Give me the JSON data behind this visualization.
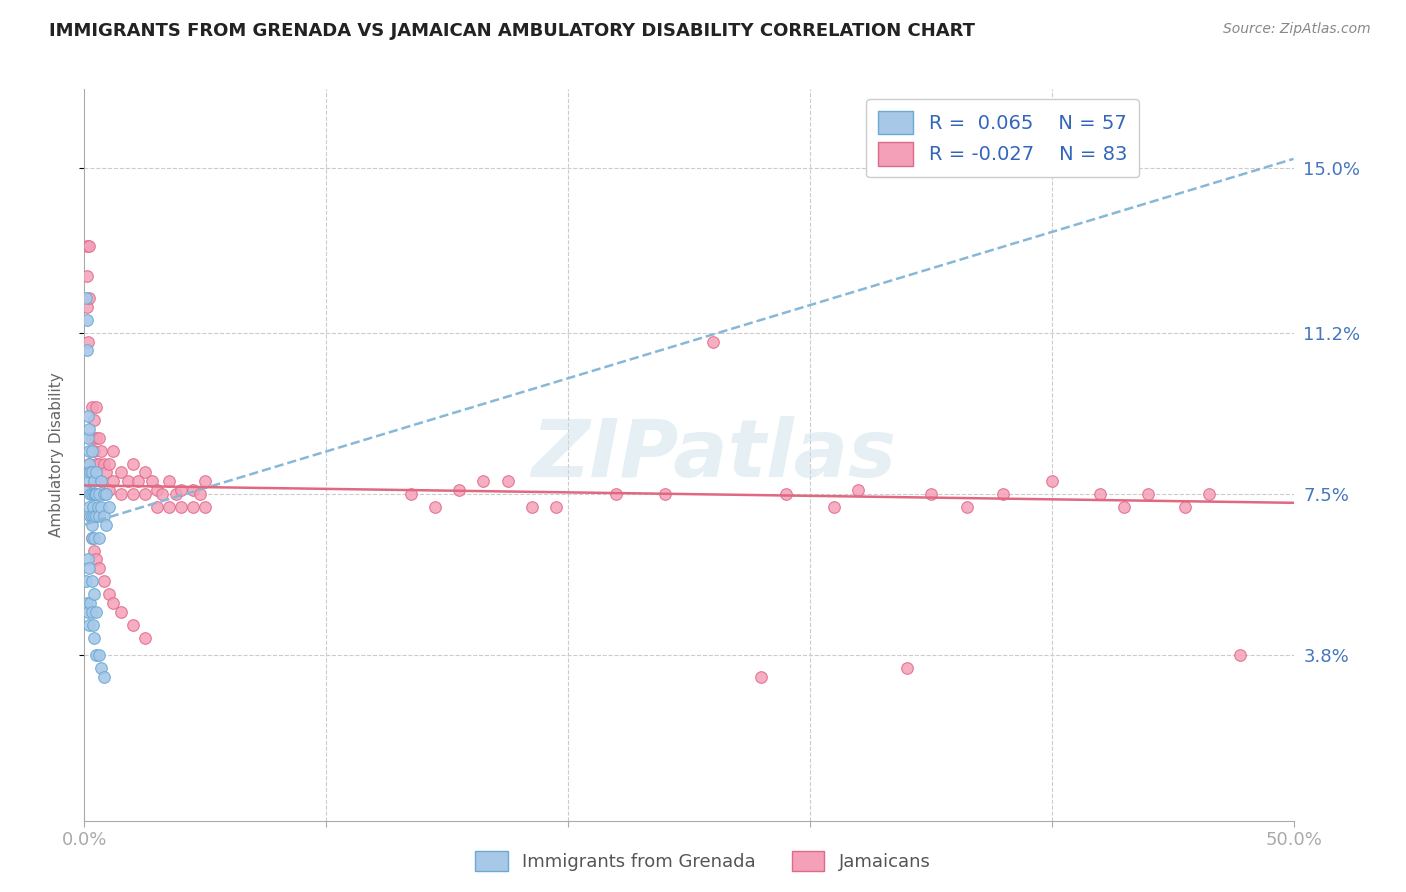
{
  "title": "IMMIGRANTS FROM GRENADA VS JAMAICAN AMBULATORY DISABILITY CORRELATION CHART",
  "source": "Source: ZipAtlas.com",
  "ylabel": "Ambulatory Disability",
  "xlim": [
    0.0,
    0.5
  ],
  "ylim": [
    0.0,
    0.168
  ],
  "ytick_positions": [
    0.038,
    0.075,
    0.112,
    0.15
  ],
  "ytick_labels": [
    "3.8%",
    "7.5%",
    "11.2%",
    "15.0%"
  ],
  "grid_color": "#cccccc",
  "background_color": "#ffffff",
  "watermark": "ZIPatlas",
  "legend_r1": "R =  0.065",
  "legend_n1": "N = 57",
  "legend_r2": "R = -0.027",
  "legend_n2": "N = 83",
  "blue_color": "#a8c8e8",
  "blue_edge": "#6aaad4",
  "pink_color": "#f4a0b8",
  "pink_edge": "#e06888",
  "trend_blue_color": "#88b8d8",
  "trend_pink_color": "#e06880",
  "blue_trend_x": [
    0.0,
    0.5
  ],
  "blue_trend_y": [
    0.068,
    0.152
  ],
  "pink_trend_x": [
    0.0,
    0.5
  ],
  "pink_trend_y": [
    0.077,
    0.073
  ],
  "blue_x": [
    0.0005,
    0.0008,
    0.001,
    0.0012,
    0.0015,
    0.0015,
    0.0018,
    0.002,
    0.002,
    0.002,
    0.002,
    0.0022,
    0.0025,
    0.0025,
    0.003,
    0.003,
    0.003,
    0.003,
    0.003,
    0.0032,
    0.0035,
    0.004,
    0.004,
    0.004,
    0.004,
    0.0045,
    0.005,
    0.005,
    0.005,
    0.0055,
    0.006,
    0.006,
    0.006,
    0.007,
    0.007,
    0.008,
    0.008,
    0.009,
    0.009,
    0.01,
    0.0005,
    0.001,
    0.0015,
    0.002,
    0.0025,
    0.003,
    0.0035,
    0.004,
    0.005,
    0.006,
    0.007,
    0.008,
    0.0015,
    0.002,
    0.003,
    0.004,
    0.005
  ],
  "blue_y": [
    0.076,
    0.12,
    0.115,
    0.108,
    0.093,
    0.088,
    0.085,
    0.09,
    0.082,
    0.078,
    0.072,
    0.07,
    0.08,
    0.075,
    0.085,
    0.08,
    0.075,
    0.07,
    0.068,
    0.065,
    0.072,
    0.078,
    0.075,
    0.07,
    0.065,
    0.075,
    0.08,
    0.075,
    0.07,
    0.072,
    0.075,
    0.07,
    0.065,
    0.078,
    0.072,
    0.075,
    0.07,
    0.075,
    0.068,
    0.072,
    0.055,
    0.05,
    0.048,
    0.045,
    0.05,
    0.048,
    0.045,
    0.042,
    0.038,
    0.038,
    0.035,
    0.033,
    0.06,
    0.058,
    0.055,
    0.052,
    0.048
  ],
  "pink_x": [
    0.001,
    0.001,
    0.001,
    0.0015,
    0.002,
    0.002,
    0.002,
    0.003,
    0.003,
    0.003,
    0.004,
    0.004,
    0.005,
    0.005,
    0.005,
    0.006,
    0.006,
    0.007,
    0.007,
    0.008,
    0.008,
    0.009,
    0.01,
    0.01,
    0.012,
    0.012,
    0.015,
    0.015,
    0.018,
    0.02,
    0.02,
    0.022,
    0.025,
    0.025,
    0.028,
    0.03,
    0.03,
    0.032,
    0.035,
    0.035,
    0.038,
    0.04,
    0.04,
    0.045,
    0.045,
    0.048,
    0.05,
    0.05,
    0.003,
    0.004,
    0.005,
    0.006,
    0.008,
    0.01,
    0.012,
    0.015,
    0.02,
    0.025,
    0.175,
    0.185,
    0.22,
    0.26,
    0.29,
    0.31,
    0.32,
    0.35,
    0.365,
    0.38,
    0.4,
    0.42,
    0.43,
    0.44,
    0.455,
    0.465,
    0.478,
    0.34,
    0.28,
    0.24,
    0.195,
    0.165,
    0.155,
    0.145,
    0.135
  ],
  "pink_y": [
    0.132,
    0.125,
    0.118,
    0.11,
    0.132,
    0.12,
    0.082,
    0.095,
    0.088,
    0.08,
    0.092,
    0.085,
    0.095,
    0.088,
    0.082,
    0.088,
    0.082,
    0.085,
    0.078,
    0.082,
    0.075,
    0.08,
    0.082,
    0.076,
    0.085,
    0.078,
    0.08,
    0.075,
    0.078,
    0.082,
    0.075,
    0.078,
    0.08,
    0.075,
    0.078,
    0.076,
    0.072,
    0.075,
    0.078,
    0.072,
    0.075,
    0.076,
    0.072,
    0.076,
    0.072,
    0.075,
    0.078,
    0.072,
    0.065,
    0.062,
    0.06,
    0.058,
    0.055,
    0.052,
    0.05,
    0.048,
    0.045,
    0.042,
    0.078,
    0.072,
    0.075,
    0.11,
    0.075,
    0.072,
    0.076,
    0.075,
    0.072,
    0.075,
    0.078,
    0.075,
    0.072,
    0.075,
    0.072,
    0.075,
    0.038,
    0.035,
    0.033,
    0.075,
    0.072,
    0.078,
    0.076,
    0.072,
    0.075
  ]
}
